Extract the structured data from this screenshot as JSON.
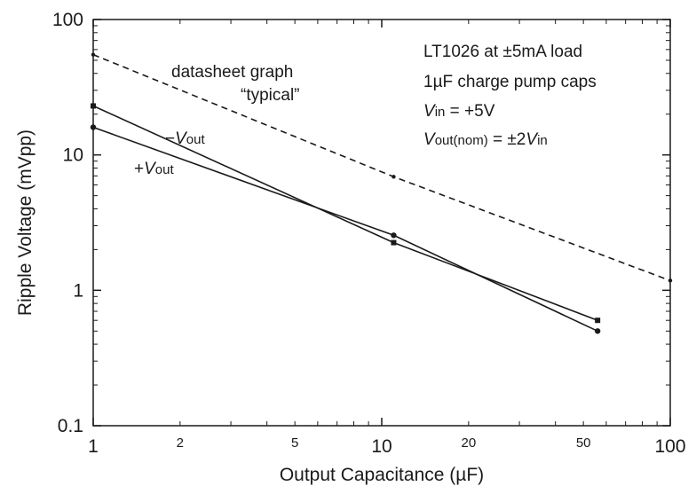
{
  "chart_data": {
    "type": "line",
    "xscale": "log",
    "yscale": "log",
    "xlim": [
      1,
      100
    ],
    "ylim": [
      0.1,
      100
    ],
    "xlabel": "Output Capacitance (µF)",
    "ylabel": "Ripple Voltage (mVpp)",
    "x_ticks": {
      "major": [
        {
          "value": 1,
          "label": "1"
        },
        {
          "value": 10,
          "label": "10"
        },
        {
          "value": 100,
          "label": "100"
        }
      ],
      "minor": [
        {
          "value": 2,
          "label": "2"
        },
        {
          "value": 5,
          "label": "5"
        },
        {
          "value": 20,
          "label": "20"
        },
        {
          "value": 50,
          "label": "50"
        }
      ]
    },
    "y_ticks": {
      "major": [
        {
          "value": 0.1,
          "label": "0.1"
        },
        {
          "value": 1,
          "label": "1"
        },
        {
          "value": 10,
          "label": "10"
        },
        {
          "value": 100,
          "label": "100"
        }
      ]
    },
    "grid": false,
    "legend": "none",
    "series": [
      {
        "style": "dashed",
        "marker": "dot",
        "color": "#1a1a1a",
        "points": [
          [
            1,
            55
          ],
          [
            11,
            6.9
          ],
          [
            100,
            1.18
          ]
        ],
        "label_lines": [
          "datasheet graph",
          "“typical”"
        ]
      },
      {
        "style": "solid",
        "marker": "square",
        "color": "#1a1a1a",
        "points": [
          [
            1,
            23
          ],
          [
            11,
            2.25
          ],
          [
            56,
            0.6
          ]
        ],
        "label_prefix": "−",
        "label_main": "V",
        "label_sub": "out"
      },
      {
        "style": "solid",
        "marker": "circle",
        "color": "#1a1a1a",
        "points": [
          [
            1,
            16
          ],
          [
            11,
            2.55
          ],
          [
            56,
            0.5
          ]
        ],
        "label_prefix": "+",
        "label_main": "V",
        "label_sub": "out"
      }
    ],
    "annotations": {
      "line1": "LT1026 at ±5mA load",
      "line2": "1µF charge pump caps",
      "line3": {
        "v": "V",
        "sub": "in",
        "rest": " = +5V"
      },
      "line4": {
        "v": "V",
        "sub": "out(nom)",
        "rest": " = ±2",
        "v2": "V",
        "sub2": "in"
      }
    }
  }
}
